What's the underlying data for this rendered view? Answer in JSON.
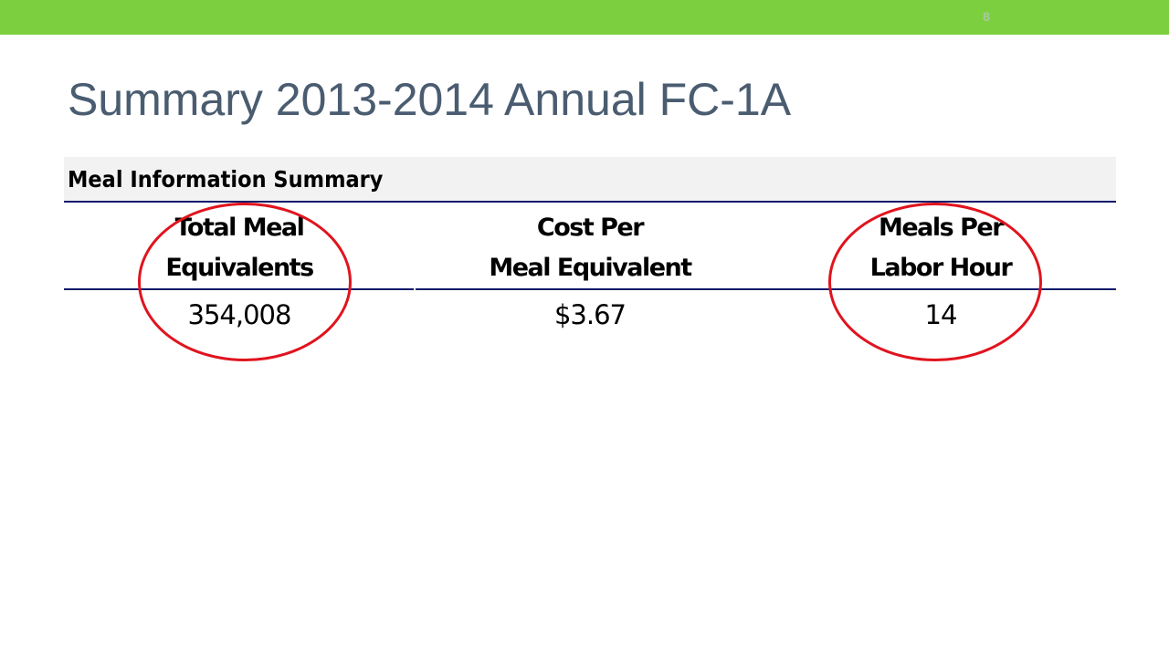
{
  "slide": {
    "number": "8",
    "title": "Summary 2013-2014 Annual FC-1A"
  },
  "table": {
    "header": "Meal Information Summary",
    "columns": [
      {
        "label_line1": "Total Meal",
        "label_line2": "Equivalents",
        "value": "354,008",
        "highlighted": true
      },
      {
        "label_line1": "Cost Per",
        "label_line2": "Meal Equivalent",
        "value": "$3.67",
        "highlighted": false
      },
      {
        "label_line1": "Meals Per",
        "label_line2": "Labor Hour",
        "value": "14",
        "highlighted": true
      }
    ]
  },
  "colors": {
    "accent_bar": "#7cd03f",
    "title_text": "#4a5c70",
    "rule": "#0c1a6b",
    "highlight_ring": "#e0141e"
  }
}
